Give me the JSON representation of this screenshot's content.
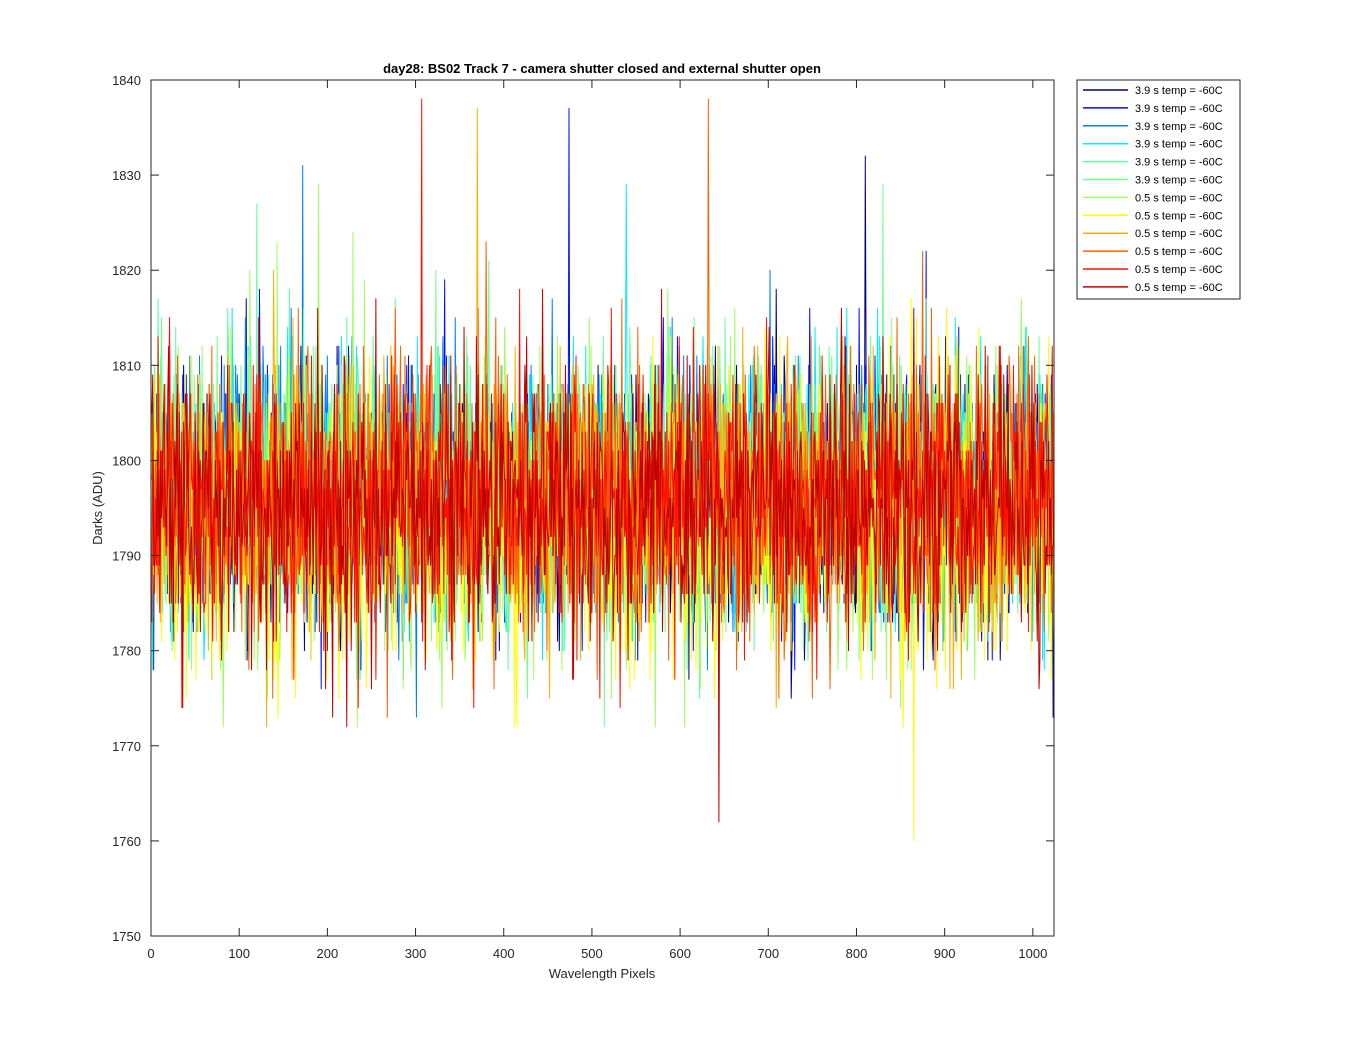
{
  "chart_data": {
    "type": "line",
    "title": "day28: BS02  Track 7 - camera shutter closed and external shutter open",
    "xlabel": "Wavelength Pixels",
    "ylabel": "Darks (ADU)",
    "xlim": [
      0,
      1024
    ],
    "ylim": [
      1750,
      1840
    ],
    "xticks": [
      0,
      100,
      200,
      300,
      400,
      500,
      600,
      700,
      800,
      900,
      1000
    ],
    "yticks": [
      1750,
      1760,
      1770,
      1780,
      1790,
      1800,
      1810,
      1820,
      1830,
      1840
    ],
    "grid": false,
    "legend_position": "outside-top-right",
    "sampling": {
      "x_start": 1,
      "x_end": 1024,
      "n_points": 1024
    },
    "series": [
      {
        "name": "3.9 s temp = -60C",
        "color": "#00008f",
        "mean": 1796,
        "noise": 7.0,
        "peak": {
          "x": 810,
          "y": 1832
        }
      },
      {
        "name": "3.9 s temp = -60C",
        "color": "#0010ff",
        "mean": 1796,
        "noise": 7.0,
        "peak": {
          "x": 474,
          "y": 1837
        }
      },
      {
        "name": "3.9 s temp = -60C",
        "color": "#0080ff",
        "mean": 1797,
        "noise": 7.0,
        "peak": {
          "x": 172,
          "y": 1831
        }
      },
      {
        "name": "3.9 s temp = -60C",
        "color": "#00efff",
        "mean": 1797,
        "noise": 7.0,
        "peak": {
          "x": 539,
          "y": 1829
        }
      },
      {
        "name": "3.9 s temp = -60C",
        "color": "#60ffa0",
        "mean": 1797,
        "noise": 7.0,
        "peak": {
          "x": 120,
          "y": 1827
        }
      },
      {
        "name": "3.9 s temp = -60C",
        "color": "#70ff90",
        "mean": 1797,
        "noise": 7.0,
        "peak": {
          "x": 830,
          "y": 1829
        }
      },
      {
        "name": "0.5 s temp = -60C",
        "color": "#a0ff60",
        "mean": 1795,
        "noise": 8.0,
        "peak": {
          "x": 190,
          "y": 1829
        }
      },
      {
        "name": "0.5 s temp = -60C",
        "color": "#ffff00",
        "mean": 1793,
        "noise": 8.0,
        "peak": {
          "x": 865,
          "y": 1760
        }
      },
      {
        "name": "0.5 s temp = -60C",
        "color": "#ffb000",
        "mean": 1796,
        "noise": 7.5,
        "peak": {
          "x": 370,
          "y": 1837
        }
      },
      {
        "name": "0.5 s temp = -60C",
        "color": "#ff6000",
        "mean": 1796,
        "noise": 7.5,
        "peak": {
          "x": 632,
          "y": 1838
        }
      },
      {
        "name": "0.5 s temp = -60C",
        "color": "#ff1000",
        "mean": 1796,
        "noise": 7.0,
        "peak": {
          "x": 307,
          "y": 1838
        }
      },
      {
        "name": "0.5 s temp = -60C",
        "color": "#c00000",
        "mean": 1795,
        "noise": 7.0,
        "peak": {
          "x": 644,
          "y": 1762
        }
      }
    ]
  }
}
